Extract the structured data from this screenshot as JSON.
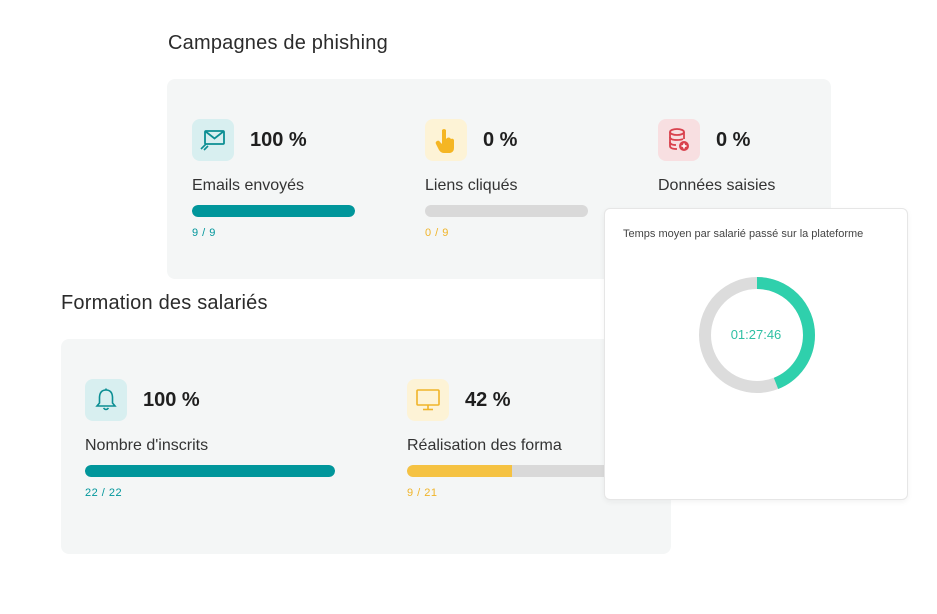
{
  "phishing": {
    "title": "Campagnes de phishing",
    "stats": [
      {
        "icon": "envelope-icon",
        "percent": "100 %",
        "label": "Emails envoyés",
        "count": "9 / 9",
        "progress": 1.0,
        "color": "#00969b",
        "count_color": "#00969b",
        "icon_bg": "#d8eff0",
        "icon_color": "#0b8e93"
      },
      {
        "icon": "pointer-hand-icon",
        "percent": "0 %",
        "label": "Liens cliqués",
        "count": "0 / 9",
        "progress": 0.0,
        "color": "#f5c242",
        "count_color": "#f0b429",
        "icon_bg": "#fdf3d6",
        "icon_color": "#f5b623"
      },
      {
        "icon": "database-icon",
        "percent": "0 %",
        "label": "Données saisies",
        "count": "",
        "progress": 0.0,
        "color": "#e8505b",
        "count_color": "#e8505b",
        "icon_bg": "#f8dfe1",
        "icon_color": "#d9424e"
      }
    ]
  },
  "training": {
    "title": "Formation des salariés",
    "stats": [
      {
        "icon": "bell-icon",
        "percent": "100 %",
        "label": "Nombre d'inscrits",
        "count": "22 / 22",
        "progress": 1.0,
        "color": "#00969b",
        "count_color": "#00969b",
        "icon_bg": "#d8eff0",
        "icon_color": "#0b8e93"
      },
      {
        "icon": "monitor-icon",
        "percent": "42 %",
        "label": "Réalisation des forma",
        "count": "9 / 21",
        "progress": 0.42,
        "color": "#f5c242",
        "count_color": "#f0b429",
        "icon_bg": "#fdf3d6",
        "icon_color": "#f0b429"
      }
    ]
  },
  "avg_time": {
    "title": "Temps moyen par salarié passé sur la plateforme",
    "value": "01:27:46",
    "ring_fraction": 0.44,
    "ring_color": "#2fd0ac",
    "track_color": "#dcdcdc"
  }
}
